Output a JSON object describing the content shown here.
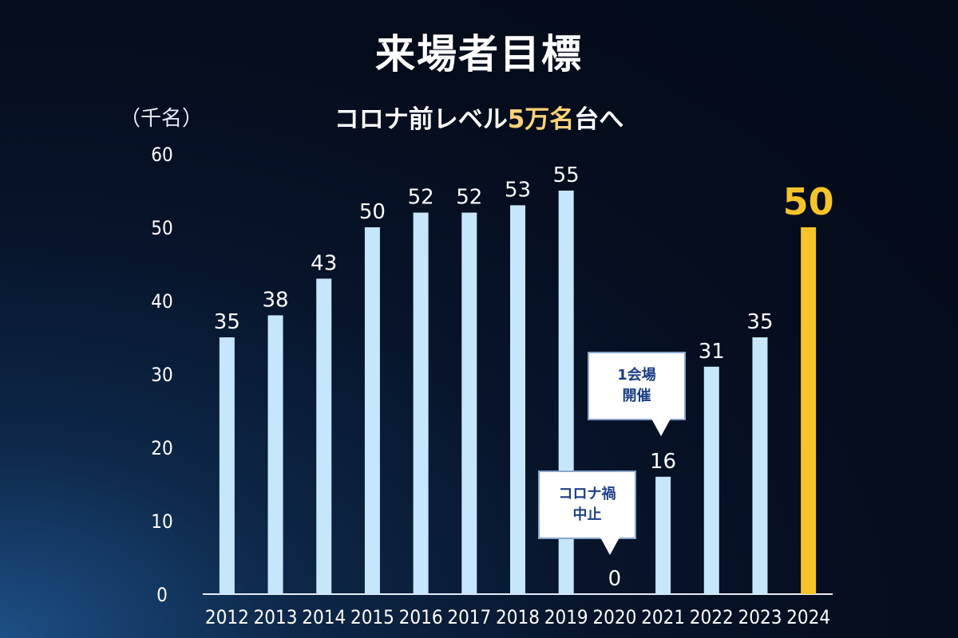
{
  "title": "来場者目標",
  "subtitle": {
    "prefix": "コロナ前レベル",
    "highlight": "5万名",
    "suffix": "台へ"
  },
  "unit_label": "（千名）",
  "callouts": [
    {
      "line1": "1会場",
      "line2": "開催"
    },
    {
      "line1": "コロナ禍",
      "line2": "中止"
    }
  ],
  "colors": {
    "bar": "#c6e6fb",
    "highlight_bar": "#f6c42a",
    "background": "#050c1c"
  },
  "chart_data": {
    "type": "bar",
    "title": "来場者目標",
    "ylabel": "（千名）",
    "categories": [
      "2012",
      "2013",
      "2014",
      "2015",
      "2016",
      "2017",
      "2018",
      "2019",
      "2020",
      "2021",
      "2022",
      "2023",
      "2024"
    ],
    "values": [
      35,
      38,
      43,
      50,
      52,
      52,
      53,
      55,
      0,
      16,
      31,
      35,
      50
    ],
    "highlight_index": 12,
    "ylim": [
      0,
      60
    ],
    "yticks": [
      0,
      10,
      20,
      30,
      40,
      50,
      60
    ],
    "grid": false,
    "legend": "none"
  }
}
